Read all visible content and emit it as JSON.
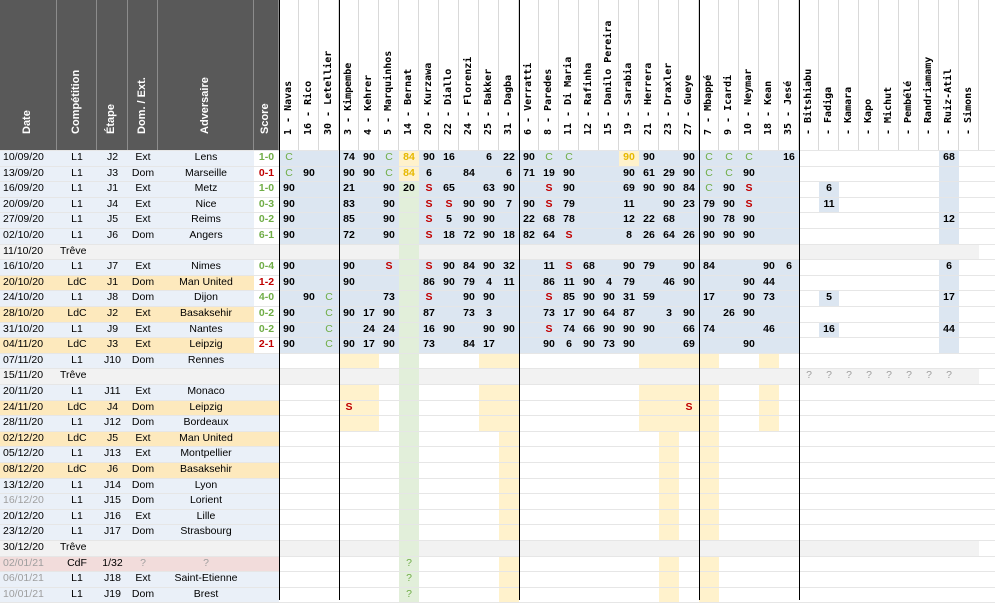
{
  "columns": {
    "date": "Date",
    "competition": "Compétition",
    "stage": "Étape",
    "venue": "Dom. / Ext.",
    "opponent": "Adversaire",
    "score": "Score"
  },
  "players": [
    "1 - Navas",
    "16 - Rico",
    "30 - Letellier",
    "3 - Kimpembe",
    "4 - Kehrer",
    "5 - Marquinhos",
    "14 - Bernat",
    "20 - Kurzawa",
    "22 - Diallo",
    "24 - Florenzi",
    "25 - Bakker",
    "31 - Dagba",
    "6 - Verratti",
    "8 - Paredes",
    "11 - Di Maria",
    "12 - Rafinha",
    "15 - Danilo Pereira",
    "19 - Sarabia",
    "21 - Herrera",
    "23 - Draxler",
    "27 - Gueye",
    "7 - Mbappé",
    "9 - Icardi",
    "10 - Neymar",
    "18 - Kean",
    "35 - Jesé",
    "- Bitshiabu",
    "- Fadiga",
    "- Kamara",
    "- Kapo",
    "- Michut",
    "- Pembélé",
    "- Randriamamy",
    "- Ruiz-Atil",
    "- Simons"
  ],
  "matches": [
    {
      "date": "10/09/20",
      "comp": "L1",
      "stage": "J2",
      "venue": "Ext",
      "opp": "Lens",
      "score": "1-0",
      "res": "W",
      "cells": [
        "C",
        "",
        "",
        "74",
        "90",
        "C",
        "84",
        "90",
        "16",
        "",
        "6",
        "22",
        "90",
        "C",
        "C",
        "",
        "",
        "90",
        "90",
        "",
        "90",
        "C",
        "C",
        "C",
        "",
        "16",
        "",
        "",
        "",
        "",
        "",
        "",
        "",
        "68",
        ""
      ]
    },
    {
      "date": "13/09/20",
      "comp": "L1",
      "stage": "J3",
      "venue": "Dom",
      "opp": "Marseille",
      "score": "0-1",
      "res": "L",
      "cells": [
        "C",
        "90",
        "",
        "90",
        "90",
        "C",
        "84",
        "6",
        "",
        "84",
        "",
        "6",
        "71",
        "19",
        "90",
        "",
        "",
        "90",
        "61",
        "29",
        "90",
        "C",
        "C",
        "90",
        "",
        "",
        "",
        "",
        "",
        "",
        "",
        "",
        "",
        "",
        ""
      ]
    },
    {
      "date": "16/09/20",
      "comp": "L1",
      "stage": "J1",
      "venue": "Ext",
      "opp": "Metz",
      "score": "1-0",
      "res": "W",
      "cells": [
        "90",
        "",
        "",
        "21",
        "",
        "90",
        "20",
        "S",
        "65",
        "",
        "63",
        "90",
        "",
        "S",
        "90",
        "",
        "",
        "69",
        "90",
        "90",
        "84",
        "C",
        "90",
        "S",
        "",
        "",
        "",
        "6",
        "",
        "",
        "",
        "",
        "",
        "",
        ""
      ]
    },
    {
      "date": "20/09/20",
      "comp": "L1",
      "stage": "J4",
      "venue": "Ext",
      "opp": "Nice",
      "score": "0-3",
      "res": "W",
      "cells": [
        "90",
        "",
        "",
        "83",
        "",
        "90",
        "",
        "S",
        "S",
        "90",
        "90",
        "7",
        "90",
        "S",
        "79",
        "",
        "",
        "11",
        "",
        "90",
        "23",
        "79",
        "90",
        "S",
        "",
        "",
        "",
        "11",
        "",
        "",
        "",
        "",
        "",
        "",
        ""
      ]
    },
    {
      "date": "27/09/20",
      "comp": "L1",
      "stage": "J5",
      "venue": "Ext",
      "opp": "Reims",
      "score": "0-2",
      "res": "W",
      "cells": [
        "90",
        "",
        "",
        "85",
        "",
        "90",
        "",
        "S",
        "5",
        "90",
        "90",
        "",
        "22",
        "68",
        "78",
        "",
        "",
        "12",
        "22",
        "68",
        "",
        "90",
        "78",
        "90",
        "",
        "",
        "",
        "",
        "",
        "",
        "",
        "",
        "",
        "12",
        ""
      ]
    },
    {
      "date": "02/10/20",
      "comp": "L1",
      "stage": "J6",
      "venue": "Dom",
      "opp": "Angers",
      "score": "6-1",
      "res": "W",
      "cells": [
        "90",
        "",
        "",
        "72",
        "",
        "90",
        "",
        "S",
        "18",
        "72",
        "90",
        "18",
        "82",
        "64",
        "S",
        "",
        "",
        "8",
        "26",
        "64",
        "26",
        "90",
        "90",
        "90",
        "",
        "",
        "",
        "",
        "",
        "",
        "",
        "",
        "",
        "",
        ""
      ]
    },
    {
      "date": "11/10/20",
      "comp": "Trêve",
      "stage": "",
      "venue": "",
      "opp": "",
      "score": "",
      "res": "B",
      "cells": []
    },
    {
      "date": "16/10/20",
      "comp": "L1",
      "stage": "J7",
      "venue": "Ext",
      "opp": "Nimes",
      "score": "0-4",
      "res": "W",
      "cells": [
        "90",
        "",
        "",
        "90",
        "",
        "S",
        "",
        "S",
        "90",
        "84",
        "90",
        "32",
        "",
        "11",
        "S",
        "68",
        "",
        "90",
        "79",
        "",
        "90",
        "84",
        "",
        "",
        "90",
        "6",
        "",
        "",
        "",
        "",
        "",
        "",
        "",
        "6",
        ""
      ]
    },
    {
      "date": "20/10/20",
      "comp": "LdC",
      "stage": "J1",
      "venue": "Dom",
      "opp": "Man United",
      "score": "1-2",
      "res": "L",
      "cells": [
        "90",
        "",
        "",
        "90",
        "",
        "",
        "",
        "86",
        "90",
        "79",
        "4",
        "11",
        "",
        "86",
        "11",
        "90",
        "4",
        "79",
        "",
        "46",
        "90",
        "",
        "",
        "90",
        "44",
        "",
        "",
        "",
        "",
        "",
        "",
        "",
        "",
        "",
        ""
      ]
    },
    {
      "date": "24/10/20",
      "comp": "L1",
      "stage": "J8",
      "venue": "Dom",
      "opp": "Dijon",
      "score": "4-0",
      "res": "W",
      "cells": [
        "",
        "90",
        "C",
        "",
        "",
        "73",
        "",
        "S",
        "",
        "90",
        "90",
        "",
        "",
        "S",
        "85",
        "90",
        "90",
        "31",
        "59",
        "",
        "",
        "17",
        "",
        "90",
        "73",
        "",
        "",
        "5",
        "",
        "",
        "",
        "",
        "",
        "17",
        ""
      ]
    },
    {
      "date": "28/10/20",
      "comp": "LdC",
      "stage": "J2",
      "venue": "Ext",
      "opp": "Basaksehir",
      "score": "0-2",
      "res": "W",
      "cells": [
        "90",
        "",
        "C",
        "90",
        "17",
        "90",
        "",
        "87",
        "",
        "73",
        "3",
        "",
        "",
        "73",
        "17",
        "90",
        "64",
        "87",
        "",
        "3",
        "90",
        "",
        "26",
        "90",
        "",
        "",
        "",
        "",
        "",
        "",
        "",
        "",
        "",
        "",
        ""
      ]
    },
    {
      "date": "31/10/20",
      "comp": "L1",
      "stage": "J9",
      "venue": "Ext",
      "opp": "Nantes",
      "score": "0-2",
      "res": "W",
      "cells": [
        "90",
        "",
        "C",
        "",
        "24",
        "24",
        "",
        "16",
        "90",
        "",
        "90",
        "90",
        "",
        "S",
        "74",
        "66",
        "90",
        "90",
        "90",
        "",
        "66",
        "74",
        "",
        "",
        "46",
        "",
        "",
        "16",
        "",
        "",
        "",
        "",
        "",
        "44",
        ""
      ]
    },
    {
      "date": "04/11/20",
      "comp": "LdC",
      "stage": "J3",
      "venue": "Ext",
      "opp": "Leipzig",
      "score": "2-1",
      "res": "L",
      "cells": [
        "90",
        "",
        "C",
        "90",
        "17",
        "90",
        "",
        "73",
        "",
        "84",
        "17",
        "",
        "",
        "90",
        "6",
        "90",
        "73",
        "90",
        "",
        "",
        "69",
        "",
        "",
        "90",
        "",
        "",
        "",
        "",
        "",
        "",
        "",
        "",
        "",
        "",
        ""
      ]
    },
    {
      "date": "07/11/20",
      "comp": "L1",
      "stage": "J10",
      "venue": "Dom",
      "opp": "Rennes",
      "score": "",
      "res": "F",
      "cells": []
    },
    {
      "date": "15/11/20",
      "comp": "Trêve",
      "stage": "",
      "venue": "",
      "opp": "",
      "score": "",
      "res": "B",
      "cells": []
    },
    {
      "date": "20/11/20",
      "comp": "L1",
      "stage": "J11",
      "venue": "Ext",
      "opp": "Monaco",
      "score": "",
      "res": "F",
      "cells": []
    },
    {
      "date": "24/11/20",
      "comp": "LdC",
      "stage": "J4",
      "venue": "Dom",
      "opp": "Leipzig",
      "score": "",
      "res": "F",
      "cells": [
        "",
        "",
        "",
        "S",
        "",
        "",
        "",
        "",
        "",
        "",
        "",
        "",
        "",
        "",
        "",
        "",
        "",
        "",
        "",
        "",
        "S",
        "",
        "",
        "",
        "",
        "",
        "",
        "",
        "",
        "",
        "",
        "",
        "",
        "",
        ""
      ]
    },
    {
      "date": "28/11/20",
      "comp": "L1",
      "stage": "J12",
      "venue": "Dom",
      "opp": "Bordeaux",
      "score": "",
      "res": "F",
      "cells": []
    },
    {
      "date": "02/12/20",
      "comp": "LdC",
      "stage": "J5",
      "venue": "Ext",
      "opp": "Man United",
      "score": "",
      "res": "F",
      "cells": []
    },
    {
      "date": "05/12/20",
      "comp": "L1",
      "stage": "J13",
      "venue": "Ext",
      "opp": "Montpellier",
      "score": "",
      "res": "F",
      "cells": []
    },
    {
      "date": "08/12/20",
      "comp": "LdC",
      "stage": "J6",
      "venue": "Dom",
      "opp": "Basaksehir",
      "score": "",
      "res": "F",
      "cells": []
    },
    {
      "date": "13/12/20",
      "comp": "L1",
      "stage": "J14",
      "venue": "Dom",
      "opp": "Lyon",
      "score": "",
      "res": "F",
      "cells": []
    },
    {
      "date": "16/12/20",
      "comp": "L1",
      "stage": "J15",
      "venue": "Dom",
      "opp": "Lorient",
      "score": "",
      "res": "F",
      "cells": []
    },
    {
      "date": "20/12/20",
      "comp": "L1",
      "stage": "J16",
      "venue": "Ext",
      "opp": "Lille",
      "score": "",
      "res": "F",
      "cells": []
    },
    {
      "date": "23/12/20",
      "comp": "L1",
      "stage": "J17",
      "venue": "Dom",
      "opp": "Strasbourg",
      "score": "",
      "res": "F",
      "cells": []
    },
    {
      "date": "30/12/20",
      "comp": "Trêve",
      "stage": "",
      "venue": "",
      "opp": "",
      "score": "",
      "res": "B",
      "cells": []
    },
    {
      "date": "02/01/21",
      "comp": "CdF",
      "stage": "1/32",
      "venue": "?",
      "opp": "?",
      "score": "",
      "res": "F",
      "cells": []
    },
    {
      "date": "06/01/21",
      "comp": "L1",
      "stage": "J18",
      "venue": "Ext",
      "opp": "Saint-Etienne",
      "score": "",
      "res": "F",
      "cells": []
    },
    {
      "date": "10/01/21",
      "comp": "L1",
      "stage": "J19",
      "venue": "Dom",
      "opp": "Brest",
      "score": "",
      "res": "F",
      "cells": []
    }
  ],
  "future_questions": {
    "bernat_rows": [
      "02/01/21",
      "06/01/21",
      "10/01/21"
    ],
    "mark": "?"
  },
  "break_question_cols": [
    "- Bitshiabu",
    "- Fadiga",
    "- Kamara",
    "- Kapo",
    "- Michut",
    "- Pembélé",
    "- Randriamamy",
    "- Ruiz-Atil"
  ],
  "colors": {
    "header_bg": "#595959",
    "played_blue": "#dce6f1",
    "sub_green": "#e2efda",
    "partial_yellow": "#fff2cc",
    "win_green": "#70ad47",
    "loss_red": "#c00000",
    "ldc_row": "#fde9bd",
    "future_row": "#eaf0f8",
    "break_row": "#f2f2f2",
    "cdf_row": "#f2dcdb",
    "s_red": "#c00000",
    "c_green": "#70ad47",
    "purple": "#d9d2e9"
  }
}
